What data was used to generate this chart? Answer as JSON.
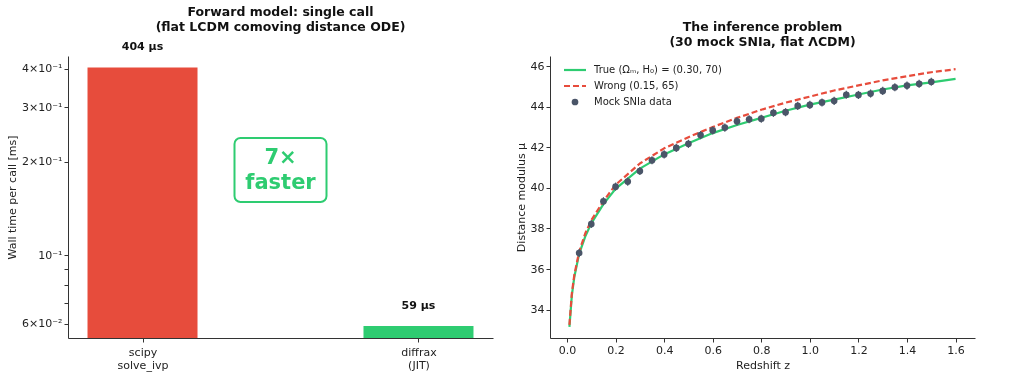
{
  "chart_data": [
    {
      "type": "bar",
      "title": "Forward model: single call\n(flat LCDM comoving distance ODE)",
      "ylabel": "Wall time per call [ms]",
      "categories": [
        "scipy\nsolve_ivp",
        "diffrax\n(JIT)"
      ],
      "values": [
        0.404,
        0.059
      ],
      "colors": [
        "#e74c3c",
        "#2ecc71"
      ],
      "log": true,
      "ylim": [
        0.054,
        0.44
      ],
      "yticks": [
        {
          "value": 0.06,
          "label": "6×10⁻²"
        },
        {
          "value": 0.07,
          "label": null
        },
        {
          "value": 0.08,
          "label": null
        },
        {
          "value": 0.09,
          "label": null
        },
        {
          "value": 0.1,
          "label": "10⁻¹"
        },
        {
          "value": 0.2,
          "label": "2×10⁻¹"
        },
        {
          "value": 0.3,
          "label": "3×10⁻¹"
        },
        {
          "value": 0.4,
          "label": "4×10⁻¹"
        }
      ],
      "annotations": [
        {
          "text": "404 µs",
          "x": "scipy\nsolve_ivp",
          "y": 0.404
        },
        {
          "text": "59 µs",
          "x": "diffrax\n(JIT)",
          "y": 0.059
        },
        "7× faster"
      ],
      "grid": false
    },
    {
      "type": "line",
      "title": "The inference problem\n(30 mock SNIa, flat ΛCDM)",
      "xlabel": "Redshift z",
      "ylabel": "Distance modulus μ",
      "xlim": [
        -0.07,
        1.68
      ],
      "xticks": [
        {
          "value": 0,
          "label": "0.0"
        },
        0.2,
        0.4,
        0.6,
        0.8,
        {
          "value": 1,
          "label": "1.0"
        },
        1.2,
        1.4,
        1.6
      ],
      "ylim": [
        32.6,
        46.5
      ],
      "yticks": [
        34,
        36,
        38,
        40,
        42,
        44,
        46
      ],
      "grid": false,
      "legend": "top left",
      "series": [
        {
          "name": "True (Ωₘ, H₀) = (0.30, 70)",
          "type": "line",
          "color": "#2ecc71",
          "line_style": "solid",
          "x": [
            0.01,
            0.02,
            0.03,
            0.05,
            0.075,
            0.1,
            0.15,
            0.2,
            0.3,
            0.4,
            0.5,
            0.6,
            0.7,
            0.8,
            0.9,
            1.0,
            1.1,
            1.2,
            1.3,
            1.4,
            1.5,
            1.6
          ],
          "values": [
            33.15,
            34.7,
            35.6,
            36.75,
            37.6,
            38.25,
            39.2,
            39.95,
            40.95,
            41.65,
            42.2,
            42.7,
            43.1,
            43.45,
            43.8,
            44.1,
            44.35,
            44.6,
            44.85,
            45.05,
            45.2,
            45.37
          ]
        },
        {
          "name": "Wrong (0.15, 65)",
          "type": "line",
          "color": "#e74c3c",
          "line_style": "dashed",
          "x": [
            0.01,
            0.02,
            0.03,
            0.05,
            0.075,
            0.1,
            0.15,
            0.2,
            0.3,
            0.4,
            0.5,
            0.6,
            0.7,
            0.8,
            0.9,
            1.0,
            1.1,
            1.2,
            1.3,
            1.4,
            1.5,
            1.6
          ],
          "values": [
            33.25,
            34.8,
            35.7,
            36.85,
            37.75,
            38.4,
            39.35,
            40.15,
            41.2,
            41.95,
            42.5,
            43.0,
            43.45,
            43.85,
            44.2,
            44.5,
            44.8,
            45.05,
            45.3,
            45.5,
            45.7,
            45.85
          ]
        },
        {
          "name": "Mock SNIa data",
          "type": "scatter",
          "color": "#4a5568",
          "marker": "circle",
          "x": [
            0.05,
            0.1,
            0.15,
            0.2,
            0.25,
            0.3,
            0.35,
            0.4,
            0.45,
            0.5,
            0.55,
            0.6,
            0.65,
            0.7,
            0.75,
            0.8,
            0.85,
            0.9,
            0.95,
            1.0,
            1.05,
            1.1,
            1.15,
            1.2,
            1.25,
            1.3,
            1.35,
            1.4,
            1.45,
            1.5
          ],
          "values": [
            36.79,
            38.22,
            39.34,
            40.06,
            40.31,
            40.83,
            41.36,
            41.65,
            41.97,
            42.17,
            42.6,
            42.83,
            42.97,
            43.28,
            43.38,
            43.41,
            43.7,
            43.73,
            44.04,
            44.09,
            44.21,
            44.29,
            44.59,
            44.58,
            44.65,
            44.78,
            44.96,
            45.04,
            45.13,
            45.23
          ],
          "errors": [
            0.2,
            0.2,
            0.2,
            0.2,
            0.2,
            0.2,
            0.2,
            0.2,
            0.2,
            0.2,
            0.2,
            0.2,
            0.2,
            0.2,
            0.2,
            0.2,
            0.2,
            0.2,
            0.2,
            0.2,
            0.2,
            0.2,
            0.2,
            0.2,
            0.2,
            0.2,
            0.2,
            0.2,
            0.2,
            0.2
          ]
        }
      ]
    }
  ]
}
